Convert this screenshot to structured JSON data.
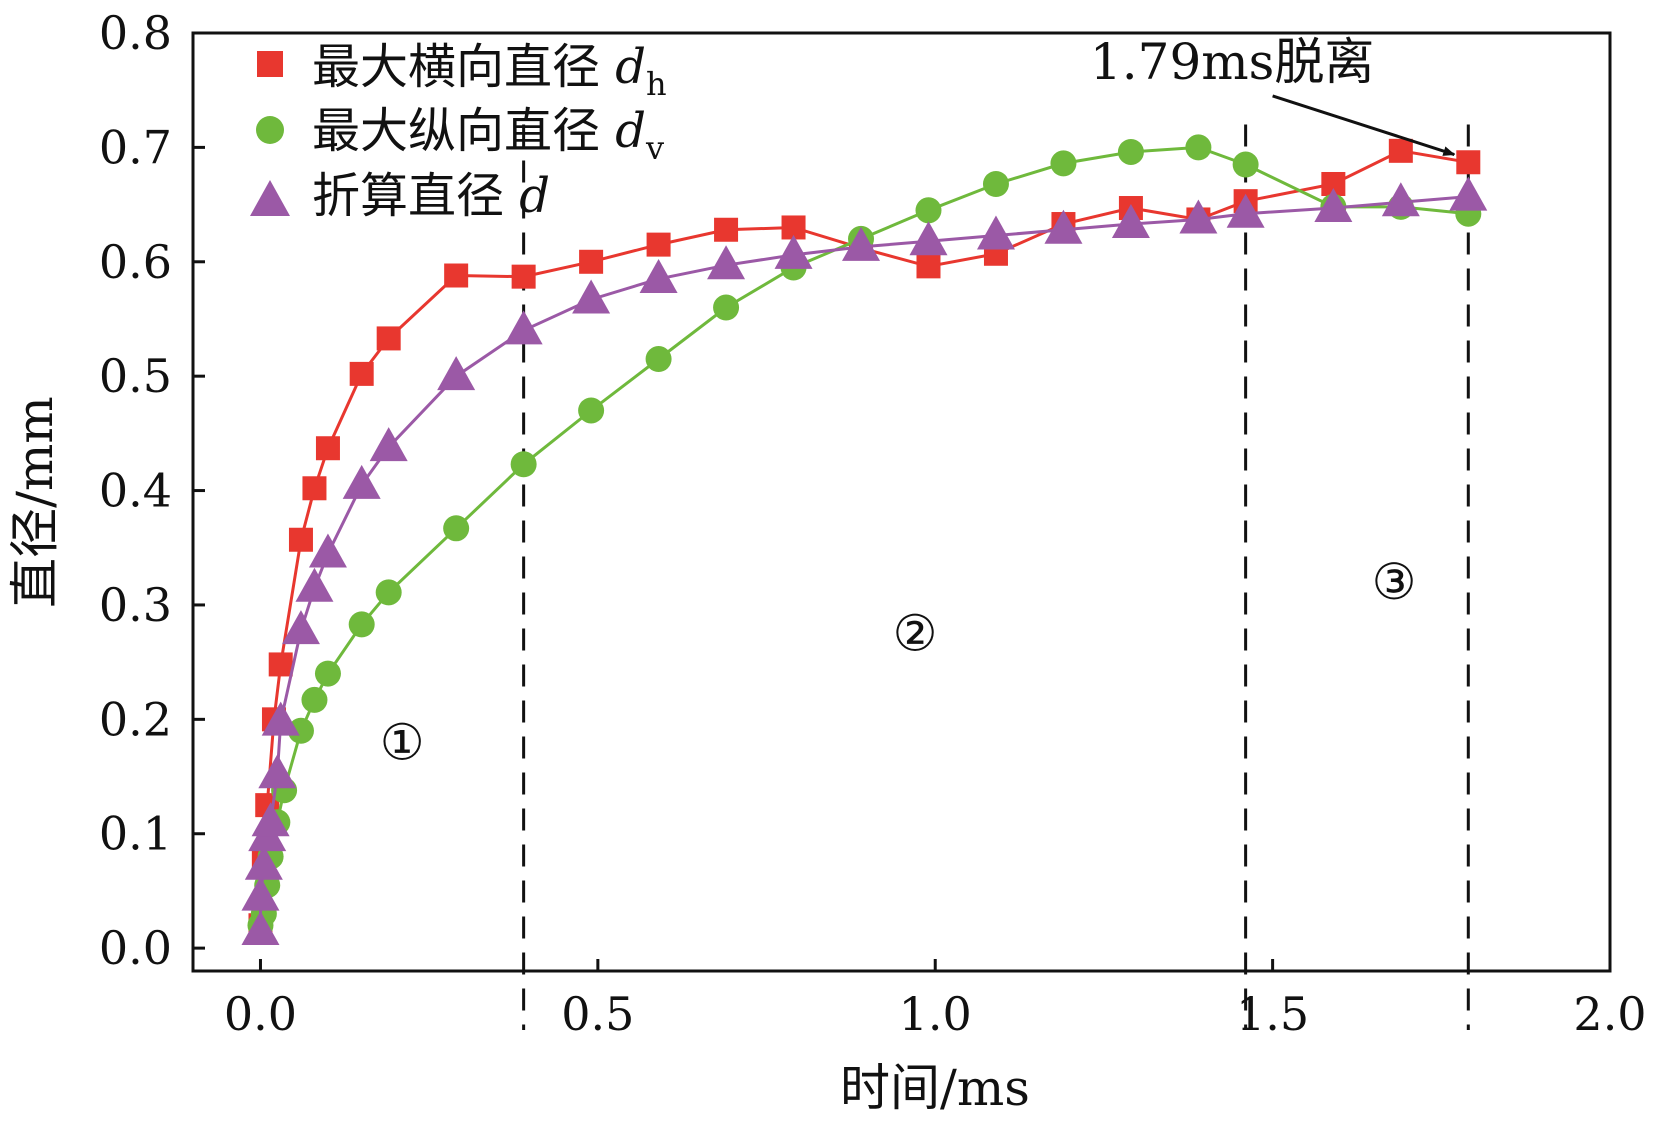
{
  "chart_data": {
    "type": "line",
    "title": "",
    "xlabel": "时间/ms",
    "ylabel": "直径/mm",
    "xlim": [
      -0.1,
      2.0
    ],
    "ylim": [
      -0.02,
      0.8
    ],
    "xticks": [
      "0.0",
      "0.5",
      "1.0",
      "1.5",
      "2.0"
    ],
    "yticks": [
      "0.0",
      "0.1",
      "0.2",
      "0.3",
      "0.4",
      "0.5",
      "0.6",
      "0.7",
      "0.8"
    ],
    "xtick_values": [
      0.0,
      0.5,
      1.0,
      1.5,
      2.0
    ],
    "ytick_values": [
      0.0,
      0.1,
      0.2,
      0.3,
      0.4,
      0.5,
      0.6,
      0.7,
      0.8
    ],
    "grid": false,
    "legend_position": "top-left",
    "series": [
      {
        "name": "最大横向直径",
        "symbol": "d",
        "subscript": "h",
        "marker": "square",
        "color": "#e8372f",
        "points": [
          [
            0.0,
            0.02
          ],
          [
            0.005,
            0.08
          ],
          [
            0.01,
            0.125
          ],
          [
            0.02,
            0.2
          ],
          [
            0.03,
            0.248
          ],
          [
            0.06,
            0.357
          ],
          [
            0.08,
            0.402
          ],
          [
            0.1,
            0.437
          ],
          [
            0.15,
            0.502
          ],
          [
            0.19,
            0.533
          ],
          [
            0.29,
            0.588
          ],
          [
            0.39,
            0.587
          ],
          [
            0.49,
            0.6
          ],
          [
            0.59,
            0.615
          ],
          [
            0.69,
            0.628
          ],
          [
            0.79,
            0.63
          ],
          [
            0.89,
            0.612
          ],
          [
            0.99,
            0.596
          ],
          [
            1.09,
            0.607
          ],
          [
            1.19,
            0.633
          ],
          [
            1.29,
            0.647
          ],
          [
            1.39,
            0.637
          ],
          [
            1.46,
            0.653
          ],
          [
            1.59,
            0.668
          ],
          [
            1.69,
            0.697
          ],
          [
            1.79,
            0.687
          ]
        ]
      },
      {
        "name": "最大纵向直径",
        "symbol": "d",
        "subscript": "v",
        "marker": "circle",
        "color": "#6fb93c",
        "points": [
          [
            0.0,
            0.02
          ],
          [
            0.005,
            0.03
          ],
          [
            0.01,
            0.055
          ],
          [
            0.015,
            0.08
          ],
          [
            0.025,
            0.11
          ],
          [
            0.035,
            0.138
          ],
          [
            0.06,
            0.19
          ],
          [
            0.08,
            0.217
          ],
          [
            0.1,
            0.24
          ],
          [
            0.15,
            0.283
          ],
          [
            0.19,
            0.311
          ],
          [
            0.29,
            0.367
          ],
          [
            0.39,
            0.423
          ],
          [
            0.49,
            0.47
          ],
          [
            0.59,
            0.515
          ],
          [
            0.69,
            0.56
          ],
          [
            0.79,
            0.595
          ],
          [
            0.89,
            0.62
          ],
          [
            0.99,
            0.645
          ],
          [
            1.09,
            0.668
          ],
          [
            1.19,
            0.686
          ],
          [
            1.29,
            0.696
          ],
          [
            1.39,
            0.7
          ],
          [
            1.46,
            0.685
          ],
          [
            1.59,
            0.648
          ],
          [
            1.69,
            0.648
          ],
          [
            1.79,
            0.642
          ]
        ]
      },
      {
        "name": "折算直径",
        "symbol": "d",
        "subscript": "",
        "marker": "triangle",
        "color": "#9b59a6",
        "points": [
          [
            0.0,
            0.015
          ],
          [
            0.0,
            0.045
          ],
          [
            0.005,
            0.072
          ],
          [
            0.01,
            0.097
          ],
          [
            0.015,
            0.11
          ],
          [
            0.025,
            0.152
          ],
          [
            0.03,
            0.198
          ],
          [
            0.06,
            0.278
          ],
          [
            0.08,
            0.315
          ],
          [
            0.1,
            0.345
          ],
          [
            0.15,
            0.405
          ],
          [
            0.19,
            0.438
          ],
          [
            0.29,
            0.5
          ],
          [
            0.39,
            0.54
          ],
          [
            0.49,
            0.567
          ],
          [
            0.59,
            0.585
          ],
          [
            0.69,
            0.597
          ],
          [
            0.79,
            0.606
          ],
          [
            0.89,
            0.613
          ],
          [
            0.99,
            0.618
          ],
          [
            1.09,
            0.623
          ],
          [
            1.19,
            0.628
          ],
          [
            1.29,
            0.633
          ],
          [
            1.39,
            0.637
          ],
          [
            1.46,
            0.642
          ],
          [
            1.59,
            0.647
          ],
          [
            1.69,
            0.652
          ],
          [
            1.79,
            0.657
          ]
        ]
      }
    ],
    "dashed_lines_x": [
      0.39,
      1.46,
      1.79
    ],
    "regions": [
      {
        "label": "①",
        "x": 0.21,
        "y": 0.165
      },
      {
        "label": "②",
        "x": 0.97,
        "y": 0.26
      },
      {
        "label": "③",
        "x": 1.68,
        "y": 0.305
      }
    ],
    "annotation": {
      "text": "1.79ms脱离",
      "text_x": 1.44,
      "text_y": 0.76,
      "arrow_from": [
        1.5,
        0.745
      ],
      "arrow_to": [
        1.79,
        0.692
      ]
    }
  }
}
